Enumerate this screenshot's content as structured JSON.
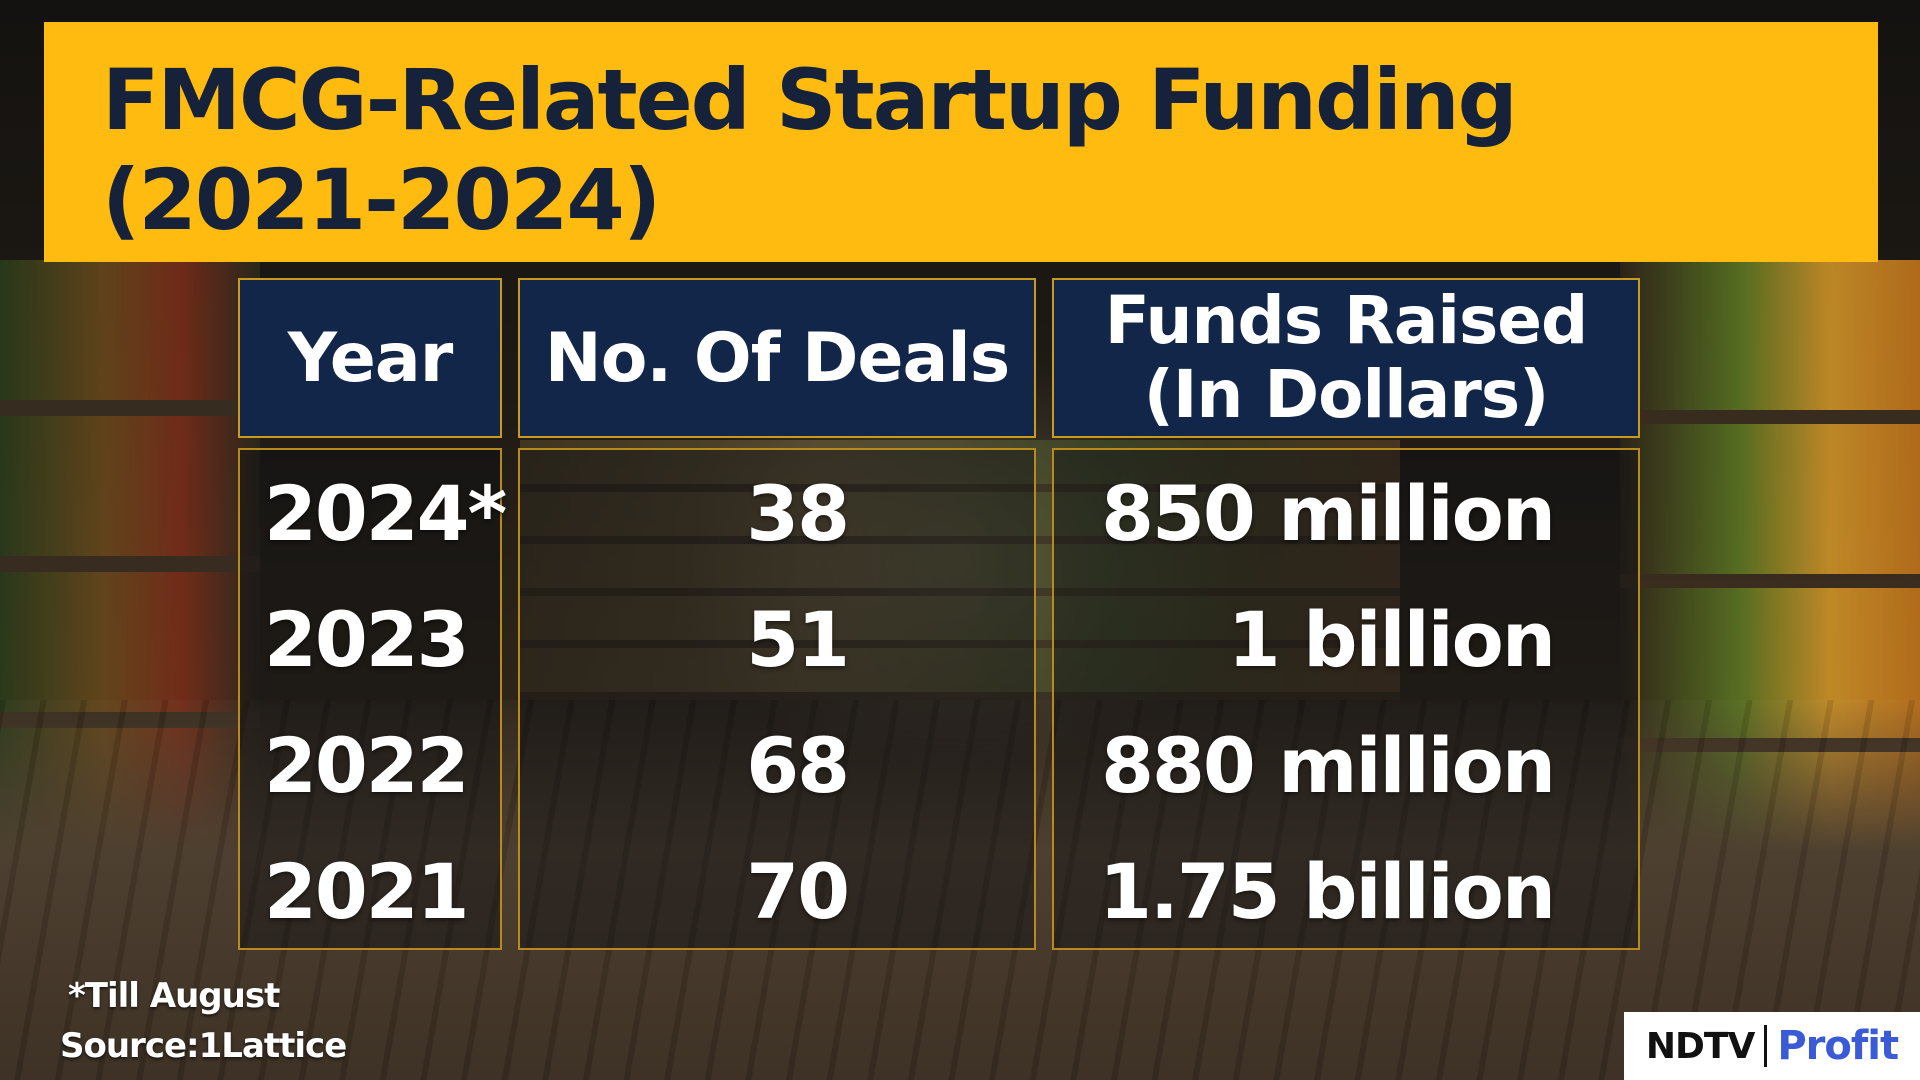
{
  "title": "FMCG-Related Startup Funding\n(2021-2024)",
  "table": {
    "headers": {
      "year": "Year",
      "deals": "No. Of Deals",
      "funds_line1": "Funds Raised",
      "funds_line2": "(In Dollars)"
    },
    "rows": [
      {
        "year": "2024*",
        "deals": "38",
        "funds": "850 million"
      },
      {
        "year": "2023",
        "deals": "51",
        "funds": "1 billion"
      },
      {
        "year": "2022",
        "deals": "68",
        "funds": "880 million"
      },
      {
        "year": "2021",
        "deals": "70",
        "funds": "1.75 billion"
      }
    ]
  },
  "footnotes": {
    "note": "*Till August",
    "source": "Source:1Lattice"
  },
  "logo": {
    "ndtv": "NDTV",
    "profit": "Profit"
  },
  "colors": {
    "banner": "#ffbb10",
    "header_bg": "#12264a",
    "border": "#c99a1c",
    "title_text": "#16213a",
    "profit_blue": "#3b5bd6"
  },
  "chart_data": {
    "type": "table",
    "title": "FMCG-Related Startup Funding (2021-2024)",
    "columns": [
      "Year",
      "No. Of Deals",
      "Funds Raised (In Dollars)"
    ],
    "rows": [
      [
        "2024*",
        38,
        "850 million"
      ],
      [
        "2023",
        51,
        "1 billion"
      ],
      [
        "2022",
        68,
        "880 million"
      ],
      [
        "2021",
        70,
        "1.75 billion"
      ]
    ],
    "footnote": "*Till August",
    "source": "Source:1Lattice"
  }
}
